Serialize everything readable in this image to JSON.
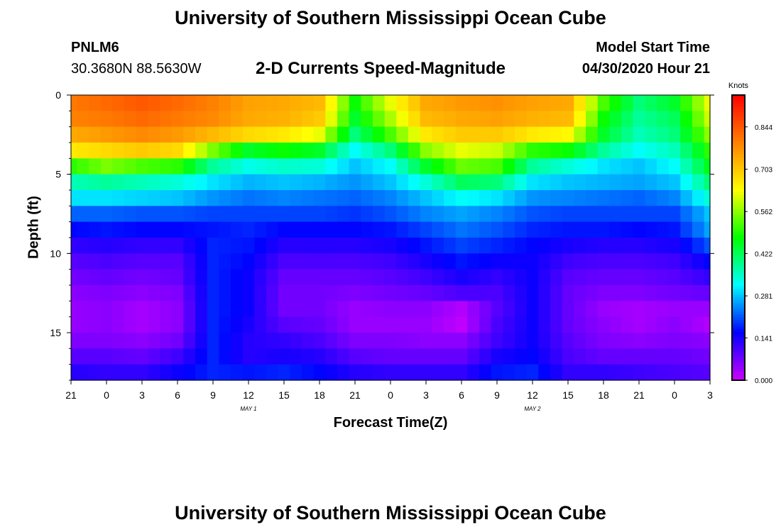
{
  "header": {
    "title": "University of Southern Mississippi Ocean Cube",
    "station_id": "PNLM6",
    "station_coords": "30.3680N 88.5630W",
    "subtitle": "2-D Currents Speed-Magnitude",
    "model_start_label": "Model Start Time",
    "model_start_value": "04/30/2020 Hour 21"
  },
  "footer": {
    "title": "University of Southern Mississippi Ocean Cube"
  },
  "chart_data": {
    "type": "heatmap",
    "title": "2-D Currents Speed-Magnitude",
    "xlabel": "Forecast Time(Z)",
    "ylabel": "Depth (ft)",
    "x_tick_labels": [
      "21",
      "0",
      "3",
      "6",
      "9",
      "12",
      "15",
      "18",
      "21",
      "0",
      "3",
      "6",
      "9",
      "12",
      "15",
      "18",
      "21",
      "0",
      "3"
    ],
    "x_date_labels": [
      {
        "label": "MAY 1",
        "hour_index": 5
      },
      {
        "label": "MAY 2",
        "hour_index": 13
      }
    ],
    "x_range_hours": [
      0,
      54
    ],
    "y_tick_labels": [
      "0",
      "5",
      "10",
      "15"
    ],
    "y_tick_values": [
      0,
      5,
      10,
      15
    ],
    "ylim": [
      0,
      18
    ],
    "colorbar": {
      "title": "Knots",
      "tick_labels": [
        "0.844",
        "0.703",
        "0.562",
        "0.422",
        "0.281",
        "0.141",
        "0.000"
      ],
      "tick_values": [
        0.844,
        0.703,
        0.562,
        0.422,
        0.281,
        0.141,
        0.0
      ],
      "range": [
        0,
        0.95
      ],
      "colors": [
        "#cc00ff",
        "#0000ff",
        "#00ffff",
        "#00ff00",
        "#ffff00",
        "#ff8000",
        "#ff0000"
      ]
    },
    "depths_ft": [
      0.5,
      1.5,
      2.5,
      3.5,
      4.5,
      5.5,
      6.5,
      7.5,
      8.5,
      9.5,
      10.5,
      11.5,
      12.5,
      13.5,
      14.5,
      15.5,
      16.5,
      17.5
    ],
    "times_hr": [
      0,
      3,
      6,
      9,
      12,
      15,
      18,
      21,
      24,
      27,
      30,
      33,
      36,
      39,
      42,
      45,
      48,
      51,
      54
    ],
    "speed_knots": [
      [
        0.8,
        0.82,
        0.84,
        0.82,
        0.79,
        0.75,
        0.74,
        0.72,
        0.48,
        0.62,
        0.74,
        0.76,
        0.77,
        0.75,
        0.74,
        0.52,
        0.4,
        0.45,
        0.62
      ],
      [
        0.79,
        0.8,
        0.82,
        0.8,
        0.78,
        0.74,
        0.73,
        0.7,
        0.45,
        0.58,
        0.72,
        0.74,
        0.75,
        0.73,
        0.72,
        0.48,
        0.38,
        0.42,
        0.6
      ],
      [
        0.74,
        0.76,
        0.78,
        0.76,
        0.72,
        0.68,
        0.66,
        0.62,
        0.4,
        0.52,
        0.66,
        0.7,
        0.7,
        0.66,
        0.64,
        0.45,
        0.36,
        0.4,
        0.56
      ],
      [
        0.66,
        0.68,
        0.7,
        0.68,
        0.55,
        0.45,
        0.48,
        0.45,
        0.32,
        0.4,
        0.56,
        0.62,
        0.6,
        0.5,
        0.48,
        0.38,
        0.32,
        0.36,
        0.5
      ],
      [
        0.5,
        0.55,
        0.52,
        0.5,
        0.38,
        0.33,
        0.35,
        0.34,
        0.28,
        0.32,
        0.45,
        0.54,
        0.52,
        0.38,
        0.34,
        0.3,
        0.28,
        0.32,
        0.46
      ],
      [
        0.36,
        0.38,
        0.36,
        0.34,
        0.3,
        0.27,
        0.28,
        0.27,
        0.25,
        0.28,
        0.34,
        0.42,
        0.4,
        0.3,
        0.28,
        0.27,
        0.26,
        0.28,
        0.4
      ],
      [
        0.3,
        0.3,
        0.29,
        0.28,
        0.25,
        0.23,
        0.24,
        0.23,
        0.22,
        0.24,
        0.28,
        0.32,
        0.3,
        0.25,
        0.24,
        0.23,
        0.22,
        0.24,
        0.34
      ],
      [
        0.22,
        0.22,
        0.21,
        0.21,
        0.2,
        0.2,
        0.2,
        0.2,
        0.19,
        0.21,
        0.24,
        0.26,
        0.24,
        0.21,
        0.2,
        0.2,
        0.2,
        0.2,
        0.28
      ],
      [
        0.16,
        0.17,
        0.16,
        0.16,
        0.17,
        0.18,
        0.16,
        0.16,
        0.16,
        0.17,
        0.2,
        0.23,
        0.21,
        0.18,
        0.17,
        0.17,
        0.16,
        0.17,
        0.26
      ],
      [
        0.12,
        0.13,
        0.12,
        0.12,
        0.18,
        0.17,
        0.13,
        0.13,
        0.13,
        0.14,
        0.17,
        0.2,
        0.18,
        0.16,
        0.14,
        0.13,
        0.13,
        0.14,
        0.21
      ],
      [
        0.09,
        0.1,
        0.09,
        0.09,
        0.18,
        0.16,
        0.1,
        0.1,
        0.1,
        0.11,
        0.14,
        0.17,
        0.15,
        0.15,
        0.11,
        0.1,
        0.1,
        0.11,
        0.16
      ],
      [
        0.07,
        0.08,
        0.07,
        0.08,
        0.18,
        0.15,
        0.08,
        0.08,
        0.08,
        0.09,
        0.11,
        0.14,
        0.12,
        0.15,
        0.09,
        0.08,
        0.08,
        0.09,
        0.12
      ],
      [
        0.05,
        0.06,
        0.05,
        0.06,
        0.18,
        0.15,
        0.07,
        0.07,
        0.06,
        0.07,
        0.08,
        0.1,
        0.1,
        0.15,
        0.08,
        0.06,
        0.06,
        0.07,
        0.08
      ],
      [
        0.04,
        0.05,
        0.03,
        0.05,
        0.18,
        0.15,
        0.07,
        0.07,
        0.04,
        0.05,
        0.05,
        0.02,
        0.09,
        0.15,
        0.08,
        0.04,
        0.03,
        0.04,
        0.04
      ],
      [
        0.04,
        0.05,
        0.03,
        0.05,
        0.18,
        0.14,
        0.09,
        0.08,
        0.04,
        0.04,
        0.04,
        0.01,
        0.1,
        0.15,
        0.08,
        0.05,
        0.03,
        0.05,
        0.02
      ],
      [
        0.06,
        0.06,
        0.05,
        0.07,
        0.18,
        0.13,
        0.12,
        0.1,
        0.06,
        0.06,
        0.05,
        0.05,
        0.11,
        0.15,
        0.09,
        0.06,
        0.05,
        0.06,
        0.05
      ],
      [
        0.09,
        0.09,
        0.08,
        0.11,
        0.18,
        0.13,
        0.14,
        0.13,
        0.09,
        0.08,
        0.08,
        0.08,
        0.14,
        0.16,
        0.1,
        0.08,
        0.08,
        0.08,
        0.07
      ],
      [
        0.13,
        0.12,
        0.12,
        0.15,
        0.18,
        0.17,
        0.18,
        0.16,
        0.13,
        0.12,
        0.12,
        0.12,
        0.17,
        0.18,
        0.12,
        0.12,
        0.11,
        0.1,
        0.09
      ]
    ]
  }
}
